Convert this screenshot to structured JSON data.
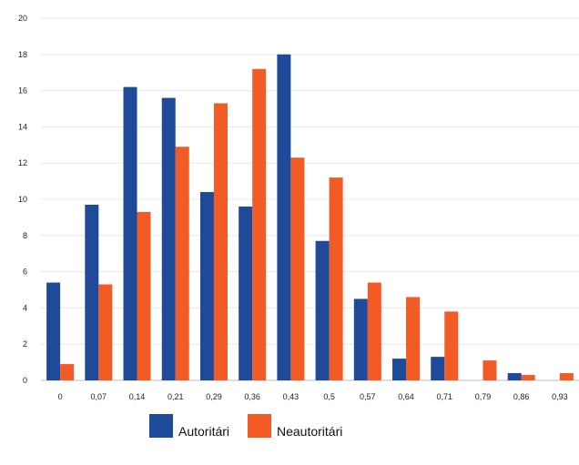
{
  "chart_data": {
    "type": "bar",
    "categories": [
      "0",
      "0,07",
      "0,14",
      "0,21",
      "0,29",
      "0,36",
      "0,43",
      "0,5",
      "0,57",
      "0,64",
      "0,71",
      "0,79",
      "0,86",
      "0,93"
    ],
    "series": [
      {
        "name": "Autoritári",
        "color": "#1f4a9a",
        "values": [
          5.4,
          9.7,
          16.2,
          15.6,
          10.4,
          9.6,
          18.0,
          7.7,
          4.5,
          1.2,
          1.3,
          0,
          0.4,
          0
        ]
      },
      {
        "name": "Neautoritári",
        "color": "#f25a26",
        "values": [
          0.9,
          5.3,
          9.3,
          12.9,
          15.3,
          17.2,
          12.3,
          11.2,
          5.4,
          4.6,
          3.8,
          1.1,
          0.3,
          0.4
        ]
      }
    ],
    "yticks": [
      "0",
      "2",
      "4",
      "6",
      "8",
      "10",
      "12",
      "14",
      "16",
      "18",
      "20"
    ],
    "ylim": [
      0,
      20
    ],
    "grid": true,
    "legend_position": "bottom"
  }
}
